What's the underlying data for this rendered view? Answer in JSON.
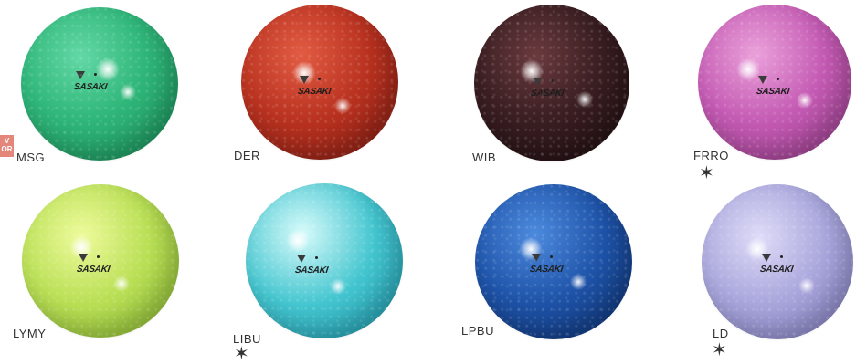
{
  "brand": "SASAKI",
  "new_badge": "V\nOR",
  "star_symbol": "✶",
  "balls": [
    {
      "code": "MSG",
      "color": "#2fb679",
      "star": false
    },
    {
      "code": "DER",
      "color": "#b8311f",
      "star": false
    },
    {
      "code": "WIB",
      "color": "#3a1e22",
      "star": false
    },
    {
      "code": "FRRO",
      "color": "#c45ab3",
      "star": true
    },
    {
      "code": "LYMY",
      "color": "#b9df55",
      "star": false
    },
    {
      "code": "LIBU",
      "color": "#43c5cf",
      "star": true
    },
    {
      "code": "LPBU",
      "color": "#1e53a8",
      "star": false
    },
    {
      "code": "LD",
      "color": "#a9a6dc",
      "star": true
    }
  ]
}
